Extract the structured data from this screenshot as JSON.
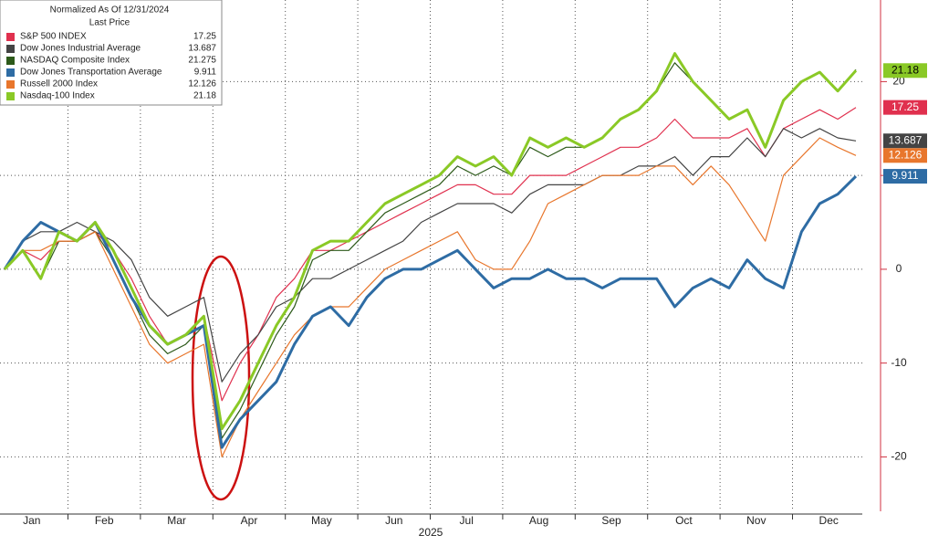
{
  "chart_data": {
    "type": "line",
    "legend_title": "Normalized As Of 12/31/2024",
    "legend_subtitle": "Last Price",
    "x_label": "2025",
    "categories": [
      null,
      "Jan",
      null,
      null,
      null,
      "Feb",
      null,
      null,
      null,
      "Mar",
      null,
      null,
      null,
      "Apr",
      null,
      null,
      null,
      "May",
      null,
      null,
      null,
      "Jun",
      null,
      null,
      null,
      "Jul",
      null,
      null,
      null,
      "Aug",
      null,
      null,
      null,
      "Sep",
      null,
      null,
      null,
      "Oct",
      null,
      null,
      null,
      "Nov",
      null,
      null,
      null,
      "Dec",
      null,
      null
    ],
    "ylim": [
      -25.8,
      28.7
    ],
    "yticks": [
      -20,
      -10,
      0,
      10,
      20
    ],
    "grid": true,
    "legend": "top-left",
    "series": [
      {
        "name": "S&P 500 INDEX",
        "color": "#e0304e",
        "last": 17.25,
        "values": [
          0,
          2,
          1,
          3,
          3,
          4,
          2,
          -1,
          -5,
          -8,
          -7,
          -5,
          -14,
          -10,
          -7,
          -3,
          -1,
          2,
          2,
          3,
          4,
          5,
          6,
          7,
          8,
          9,
          9,
          8,
          8,
          10,
          10,
          10,
          11,
          12,
          13,
          13,
          14,
          16,
          14,
          14,
          14,
          15,
          12,
          15,
          16,
          17,
          16,
          17.25
        ]
      },
      {
        "name": "Dow Jones Industrial Average",
        "color": "#444444",
        "last": 13.687,
        "values": [
          0,
          3,
          4,
          4,
          5,
          4,
          3,
          1,
          -3,
          -5,
          -4,
          -3,
          -12,
          -9,
          -7,
          -4,
          -3,
          -1,
          -1,
          0,
          1,
          2,
          3,
          5,
          6,
          7,
          7,
          7,
          6,
          8,
          9,
          9,
          9,
          10,
          10,
          11,
          11,
          12,
          10,
          12,
          12,
          14,
          12,
          15,
          14,
          15,
          14,
          13.687
        ]
      },
      {
        "name": "NASDAQ Composite Index",
        "color": "#2d5a1a",
        "last": 21.275,
        "values": [
          0,
          2,
          -1,
          3,
          3,
          4,
          1,
          -3,
          -7,
          -9,
          -8,
          -6,
          -18,
          -15,
          -11,
          -7,
          -4,
          1,
          2,
          2,
          4,
          6,
          7,
          8,
          9,
          11,
          10,
          11,
          10,
          13,
          12,
          13,
          13,
          14,
          16,
          17,
          19,
          22,
          20,
          18,
          16,
          17,
          13,
          18,
          20,
          21,
          19,
          21.275
        ]
      },
      {
        "name": "Dow Jones Transportation Average",
        "color": "#2e6ca4",
        "last": 9.911,
        "values": [
          0,
          3,
          5,
          4,
          3,
          5,
          1,
          -3,
          -6,
          -8,
          -7,
          -6,
          -19,
          -16,
          -14,
          -12,
          -8,
          -5,
          -4,
          -6,
          -3,
          -1,
          0,
          0,
          1,
          2,
          0,
          -2,
          -1,
          -1,
          0,
          -1,
          -1,
          -2,
          -1,
          -1,
          -1,
          -4,
          -2,
          -1,
          -2,
          1,
          -1,
          -2,
          4,
          7,
          8,
          9.911
        ]
      },
      {
        "name": "Russell 2000 Index",
        "color": "#e8762c",
        "last": 12.126,
        "values": [
          0,
          2,
          2,
          3,
          3,
          4,
          0,
          -4,
          -8,
          -10,
          -9,
          -8,
          -20,
          -16,
          -13,
          -10,
          -7,
          -5,
          -4,
          -4,
          -2,
          0,
          1,
          2,
          3,
          4,
          1,
          0,
          0,
          3,
          7,
          8,
          9,
          10,
          10,
          10,
          11,
          11,
          9,
          11,
          9,
          6,
          3,
          10,
          12,
          14,
          13,
          12.126
        ]
      },
      {
        "name": "Nasdaq-100 Index",
        "color": "#8ac926",
        "last": 21.18,
        "values": [
          0,
          2,
          -1,
          4,
          3,
          5,
          2,
          -2,
          -6,
          -8,
          -7,
          -5,
          -17,
          -14,
          -10,
          -6,
          -3,
          2,
          3,
          3,
          5,
          7,
          8,
          9,
          10,
          12,
          11,
          12,
          10,
          14,
          13,
          14,
          13,
          14,
          16,
          17,
          19,
          23,
          20,
          18,
          16,
          17,
          13,
          18,
          20,
          21,
          19,
          21.18
        ]
      }
    ]
  }
}
